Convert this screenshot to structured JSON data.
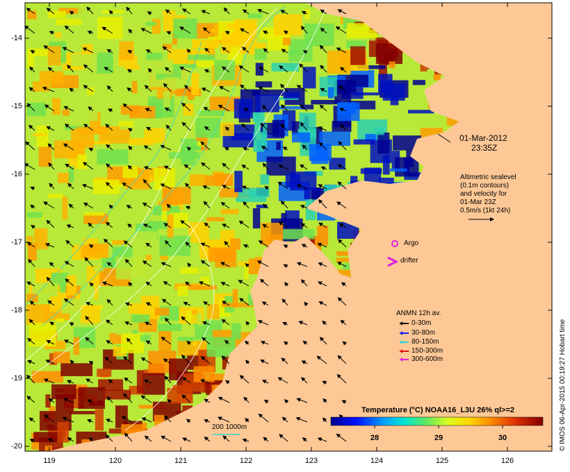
{
  "map": {
    "title": "Temperature (°C) NOAA16_L3U 26% ql>=2",
    "date_line1": "01-Mar-2012",
    "date_line2": "23:35Z",
    "altimetry_lines": [
      "Altimetric sealevel",
      "(0.1m contours)",
      "and velocity for",
      "01-Mar 23Z",
      "0.5m/s (1kt 24h)"
    ],
    "argo_label": "Argo",
    "drifter_label": "drifter",
    "anmn_title": "ANMN 12h av.",
    "anmn_items": [
      {
        "label": "0-30m",
        "color": "#000000"
      },
      {
        "label": "30-80m",
        "color": "#1a1aff"
      },
      {
        "label": "80-150m",
        "color": "#33d6d6"
      },
      {
        "label": "150-300m",
        "color": "#e01010"
      },
      {
        "label": "300-600m",
        "color": "#e020e0"
      }
    ],
    "depth_scale_label": "200  1000m",
    "credit": "© IMOS 06-Apr-2015 00:19:27 Hobart time",
    "colorbar_ticks": [
      "28",
      "29",
      "30"
    ],
    "y_ticks": [
      "-14",
      "-15",
      "-16",
      "-17",
      "-18",
      "-19",
      "-20"
    ],
    "x_ticks": [
      "119",
      "120",
      "121",
      "122",
      "123",
      "124",
      "125",
      "126"
    ],
    "land_color": "#fdc896",
    "argo_color": "#e020e0",
    "drifter_color": "#e020e0"
  }
}
